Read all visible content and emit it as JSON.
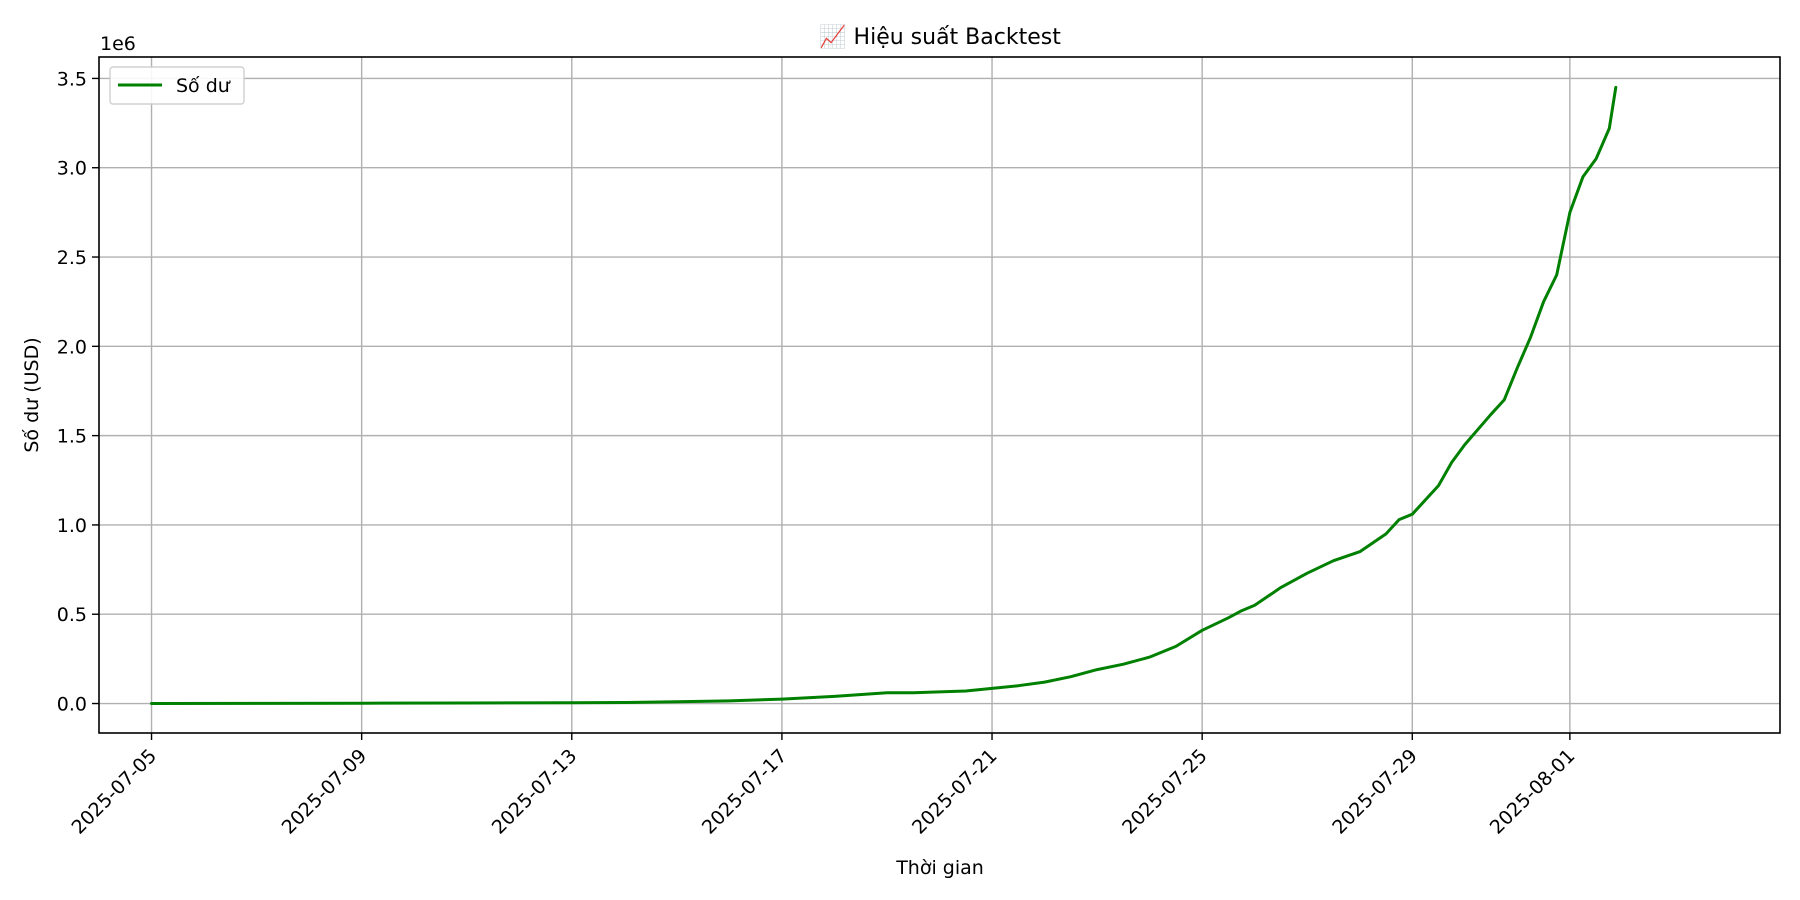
{
  "chart_data": {
    "type": "line",
    "title": "📈 Hiệu suất Backtest",
    "xlabel": "Thời gian",
    "ylabel": "Số dư (USD)",
    "y_offset_label": "1e6",
    "grid": true,
    "legend_position": "upper-left",
    "xlim": [
      "2025-07-04",
      "2025-08-05"
    ],
    "ylim": [
      -0.165,
      3.62
    ],
    "x_ticks": [
      "2025-07-05",
      "2025-07-09",
      "2025-07-13",
      "2025-07-17",
      "2025-07-21",
      "2025-07-25",
      "2025-07-29",
      "2025-08-01"
    ],
    "y_ticks": [
      "0.0",
      "0.5",
      "1.0",
      "1.5",
      "2.0",
      "2.5",
      "3.0",
      "3.5"
    ],
    "series": [
      {
        "name": "Số dư",
        "color": "#008000",
        "x": [
          "2025-07-05",
          "2025-07-07",
          "2025-07-09",
          "2025-07-11",
          "2025-07-13",
          "2025-07-14",
          "2025-07-15",
          "2025-07-16",
          "2025-07-17",
          "2025-07-18",
          "2025-07-19",
          "2025-07-19 12:00",
          "2025-07-20",
          "2025-07-20 12:00",
          "2025-07-21",
          "2025-07-21 12:00",
          "2025-07-22",
          "2025-07-22 12:00",
          "2025-07-23",
          "2025-07-23 12:00",
          "2025-07-24",
          "2025-07-24 12:00",
          "2025-07-25",
          "2025-07-25 12:00",
          "2025-07-25 18:00",
          "2025-07-26",
          "2025-07-26 12:00",
          "2025-07-27",
          "2025-07-27 12:00",
          "2025-07-28",
          "2025-07-28 12:00",
          "2025-07-28 18:00",
          "2025-07-29",
          "2025-07-29 12:00",
          "2025-07-29 18:00",
          "2025-07-30",
          "2025-07-30 12:00",
          "2025-07-30 18:00",
          "2025-07-31",
          "2025-07-31 06:00",
          "2025-07-31 12:00",
          "2025-07-31 18:00",
          "2025-08-01",
          "2025-08-01 06:00",
          "2025-08-01 12:00",
          "2025-08-01 18:00",
          "2025-08-01 21:00"
        ],
        "values": [
          0.0,
          0.001,
          0.002,
          0.003,
          0.004,
          0.006,
          0.01,
          0.015,
          0.025,
          0.04,
          0.06,
          0.06,
          0.065,
          0.07,
          0.085,
          0.1,
          0.12,
          0.15,
          0.19,
          0.22,
          0.26,
          0.32,
          0.41,
          0.48,
          0.52,
          0.55,
          0.65,
          0.73,
          0.8,
          0.85,
          0.95,
          1.03,
          1.06,
          1.22,
          1.35,
          1.45,
          1.62,
          1.7,
          1.88,
          2.05,
          2.25,
          2.4,
          2.75,
          2.95,
          3.05,
          3.22,
          3.45
        ]
      }
    ]
  }
}
